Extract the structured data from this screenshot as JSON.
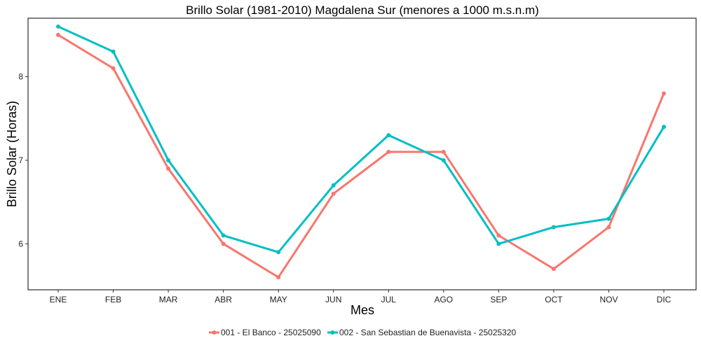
{
  "chart_data": {
    "type": "line",
    "title": "Brillo Solar (1981-2010) Magdalena Sur (menores a 1000 m.s.n.m)",
    "xlabel": "Mes",
    "ylabel": "Brillo Solar (Horas)",
    "categories": [
      "ENE",
      "FEB",
      "MAR",
      "ABR",
      "MAY",
      "JUN",
      "JUL",
      "AGO",
      "SEP",
      "OCT",
      "NOV",
      "DIC"
    ],
    "yticks": [
      6,
      7,
      8
    ],
    "ylim": [
      5.45,
      8.7
    ],
    "grid": false,
    "legend_position": "bottom",
    "series": [
      {
        "name": "001 - El Banco - 25025090",
        "color": "#F8766D",
        "values": [
          8.5,
          8.1,
          6.9,
          6.0,
          5.6,
          6.6,
          7.1,
          7.1,
          6.1,
          5.7,
          6.2,
          7.8
        ]
      },
      {
        "name": "002 - San Sebastian de Buenavista - 25025320",
        "color": "#00BFC4",
        "values": [
          8.6,
          8.3,
          7.0,
          6.1,
          5.9,
          6.7,
          7.3,
          7.0,
          6.0,
          6.2,
          6.3,
          7.4
        ]
      }
    ]
  }
}
